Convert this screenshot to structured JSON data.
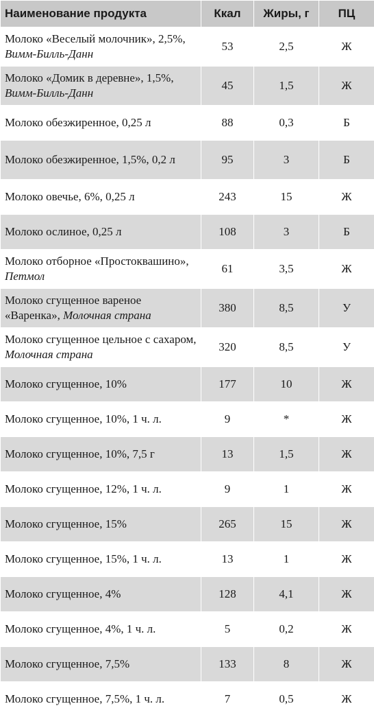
{
  "headers": {
    "name": "Наименование продукта",
    "kcal": "Ккал",
    "fat": "Жиры, г",
    "pc": "ПЦ"
  },
  "rows": [
    {
      "name": "Молоко «Веселый молочник», 2,5%, ",
      "maker": "Вимм-Билль-Данн",
      "kcal": "53",
      "fat": "2,5",
      "pc": "Ж"
    },
    {
      "name": "Молоко «Домик в деревне», 1,5%, ",
      "maker": "Вимм-Билль-Данн",
      "kcal": "45",
      "fat": "1,5",
      "pc": "Ж"
    },
    {
      "name": "Молоко обезжиренное, 0,25 л",
      "maker": "",
      "kcal": "88",
      "fat": "0,3",
      "pc": "Б"
    },
    {
      "name": "Молоко обезжиренное, 1,5%, 0,2 л",
      "maker": "",
      "kcal": "95",
      "fat": "3",
      "pc": "Б"
    },
    {
      "name": "Молоко овечье, 6%, 0,25 л",
      "maker": "",
      "kcal": "243",
      "fat": "15",
      "pc": "Ж"
    },
    {
      "name": "Молоко ослиное, 0,25 л",
      "maker": "",
      "kcal": "108",
      "fat": "3",
      "pc": "Б"
    },
    {
      "name": "Молоко отборное «Простоквашино», ",
      "maker": "Петмол",
      "kcal": "61",
      "fat": "3,5",
      "pc": "Ж"
    },
    {
      "name": "Молоко сгущенное вареное «Варенка», ",
      "maker": "Молочная страна",
      "kcal": "380",
      "fat": "8,5",
      "pc": "У"
    },
    {
      "name": "Молоко сгущенное цельное с сахаром, ",
      "maker": "Молочная страна",
      "kcal": "320",
      "fat": "8,5",
      "pc": "У"
    },
    {
      "name": "Молоко сгущенное, 10%",
      "maker": "",
      "kcal": "177",
      "fat": "10",
      "pc": "Ж"
    },
    {
      "name": "Молоко сгущенное, 10%, 1 ч. л.",
      "maker": "",
      "kcal": "9",
      "fat": "*",
      "pc": "Ж"
    },
    {
      "name": "Молоко сгущенное, 10%, 7,5 г",
      "maker": "",
      "kcal": "13",
      "fat": "1,5",
      "pc": "Ж"
    },
    {
      "name": "Молоко сгущенное, 12%, 1 ч. л.",
      "maker": "",
      "kcal": "9",
      "fat": "1",
      "pc": "Ж"
    },
    {
      "name": "Молоко сгущенное, 15%",
      "maker": "",
      "kcal": "265",
      "fat": "15",
      "pc": "Ж"
    },
    {
      "name": "Молоко сгущенное, 15%, 1 ч. л.",
      "maker": "",
      "kcal": "13",
      "fat": "1",
      "pc": "Ж"
    },
    {
      "name": "Молоко сгущенное, 4%",
      "maker": "",
      "kcal": "128",
      "fat": "4,1",
      "pc": "Ж"
    },
    {
      "name": "Молоко сгущенное, 4%, 1 ч. л.",
      "maker": "",
      "kcal": "5",
      "fat": "0,2",
      "pc": "Ж"
    },
    {
      "name": "Молоко сгущенное, 7,5%",
      "maker": "",
      "kcal": "133",
      "fat": "8",
      "pc": "Ж"
    },
    {
      "name": "Молоко сгущенное, 7,5%, 1 ч. л.",
      "maker": "",
      "kcal": "7",
      "fat": "0,5",
      "pc": "Ж"
    }
  ]
}
